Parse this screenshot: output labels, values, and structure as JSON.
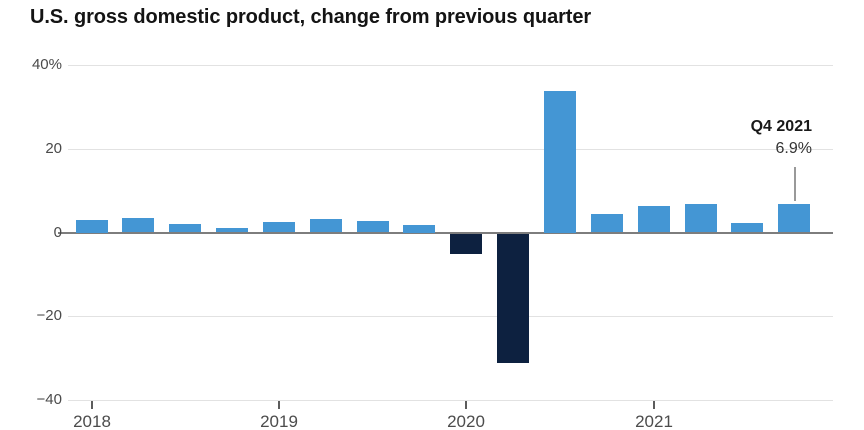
{
  "title": "U.S. gross domestic product, change from previous quarter",
  "annotation": {
    "label": "Q4 2021",
    "value": "6.9%"
  },
  "colors": {
    "positive_bar": "#4496d4",
    "negative_bar": "#0d2140",
    "gridline": "#e2e2e2",
    "zero_line": "#7d7d7d",
    "annotation_line": "#999999"
  },
  "y_axis": {
    "tick_labels": [
      "40%",
      "20",
      "0",
      "−20",
      "−40"
    ],
    "tick_values": [
      40,
      20,
      0,
      -20,
      -40
    ]
  },
  "x_axis": {
    "tick_labels": [
      "2018",
      "2019",
      "2020",
      "2021"
    ]
  },
  "chart_data": {
    "type": "bar",
    "title": "U.S. gross domestic product, change from previous quarter",
    "x": [
      "Q1 2018",
      "Q2 2018",
      "Q3 2018",
      "Q4 2018",
      "Q1 2019",
      "Q2 2019",
      "Q3 2019",
      "Q4 2019",
      "Q1 2020",
      "Q2 2020",
      "Q3 2020",
      "Q4 2020",
      "Q1 2021",
      "Q2 2021",
      "Q3 2021",
      "Q4 2021"
    ],
    "values": [
      3.1,
      3.4,
      2.1,
      1.1,
      2.4,
      3.2,
      2.8,
      1.9,
      -5.1,
      -31.2,
      33.8,
      4.5,
      6.3,
      6.7,
      2.3,
      6.9
    ],
    "unit": "%",
    "xlabel": "",
    "ylabel": "",
    "ylim": [
      -40,
      40
    ],
    "grid": true,
    "legend": false,
    "highlight": {
      "point": "Q4 2021",
      "text": "6.9%"
    }
  }
}
